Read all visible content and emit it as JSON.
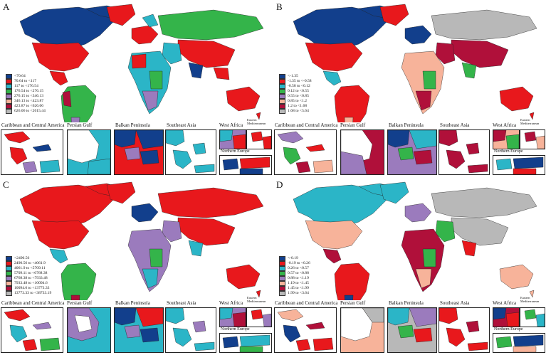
{
  "panels": [
    {
      "letter": "A",
      "legend": [
        {
          "label": "<70.64",
          "color": "#123f8c"
        },
        {
          "label": "70.64 to <117",
          "color": "#e8181c"
        },
        {
          "label": "117 to <176.54",
          "color": "#2bb5c7"
        },
        {
          "label": "176.54 to <276.15",
          "color": "#34b44a"
        },
        {
          "label": "276.15 to <346.13",
          "color": "#9b7bbd"
        },
        {
          "label": "346.13 to <423.87",
          "color": "#f7b39a"
        },
        {
          "label": "423.87 to <626.06",
          "color": "#b0103a"
        },
        {
          "label": "626.06 to <2015.44",
          "color": "#b8b8b8"
        }
      ],
      "insets": [
        "Caribbean and Central America",
        "Persian Gulf",
        "Balkan Peninsula",
        "Southeast Asia",
        "West Africa",
        "Eastern Mediterranean",
        "Northern Europe"
      ]
    },
    {
      "letter": "B",
      "legend": [
        {
          "label": "<-1.35",
          "color": "#123f8c"
        },
        {
          "label": "-1.35 to <-0.58",
          "color": "#e8181c"
        },
        {
          "label": "-0.58 to <0.12",
          "color": "#2bb5c7"
        },
        {
          "label": "0.12 to <0.55",
          "color": "#34b44a"
        },
        {
          "label": "0.55 to <0.85",
          "color": "#9b7bbd"
        },
        {
          "label": "0.85 to <1.2",
          "color": "#f7b39a"
        },
        {
          "label": "1.2 to <1.68",
          "color": "#b0103a"
        },
        {
          "label": "1.68 to <5.64",
          "color": "#b8b8b8"
        }
      ],
      "insets": [
        "Caribbean and Central America",
        "Persian Gulf",
        "Balkan Peninsula",
        "Southeast Asia",
        "West Africa",
        "Eastern Mediterranean",
        "Northern Europe"
      ]
    },
    {
      "letter": "C",
      "legend": [
        {
          "label": "<2490.56",
          "color": "#123f8c"
        },
        {
          "label": "2490.56 to <4061.9",
          "color": "#e8181c"
        },
        {
          "label": "4061.9 to <5709.11",
          "color": "#2bb5c7"
        },
        {
          "label": "5709.11 to <6768.38",
          "color": "#34b44a"
        },
        {
          "label": "6768.38 to <7933.48",
          "color": "#9b7bbd"
        },
        {
          "label": "7933.48 to <10094.6",
          "color": "#f7b39a"
        },
        {
          "label": "10094.6 to <13773.33",
          "color": "#b0103a"
        },
        {
          "label": "13773.33 to <38733.19",
          "color": "#b8b8b8"
        }
      ],
      "insets": [
        "Caribbean and Central America",
        "Persian Gulf",
        "Balkan Peninsula",
        "Southeast Asia",
        "West Africa",
        "Eastern Mediterranean",
        "Northern Europe"
      ]
    },
    {
      "letter": "D",
      "legend": [
        {
          "label": "<-0.19",
          "color": "#123f8c"
        },
        {
          "label": "-0.19 to <0.26",
          "color": "#e8181c"
        },
        {
          "label": "0.26 to <0.57",
          "color": "#2bb5c7"
        },
        {
          "label": "0.57 to <0.88",
          "color": "#34b44a"
        },
        {
          "label": "0.88 to <1.19",
          "color": "#9b7bbd"
        },
        {
          "label": "1.19 to <1.45",
          "color": "#f7b39a"
        },
        {
          "label": "1.45 to <1.99",
          "color": "#b0103a"
        },
        {
          "label": "1.99 to <3.64",
          "color": "#b8b8b8"
        }
      ],
      "insets": [
        "Caribbean and Central America",
        "Persian Gulf",
        "Balkan Peninsula",
        "Southeast Asia",
        "West Africa",
        "Eastern Mediterranean",
        "Northern Europe"
      ]
    }
  ]
}
